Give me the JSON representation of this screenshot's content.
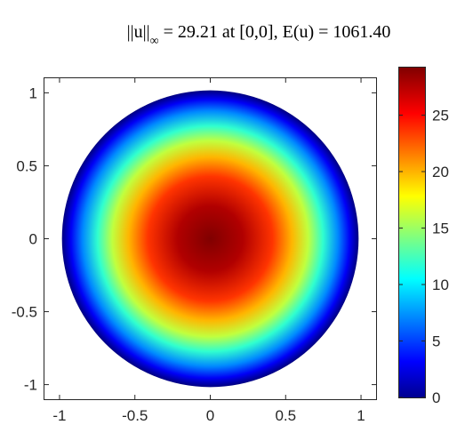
{
  "chart_data": {
    "type": "heatmap",
    "title": {
      "norm_prefix": "||u||",
      "norm_subscript": "∞",
      "rest": " = 29.21 at [0,0], E(u) = 1061.40"
    },
    "xlabel": "",
    "ylabel": "",
    "xlim": [
      -1.1,
      1.1
    ],
    "ylim": [
      -1.1,
      1.1
    ],
    "x_ticks": [
      -1,
      -0.5,
      0,
      0.5,
      1
    ],
    "x_tick_labels": [
      "-1",
      "-0.5",
      "0",
      "0.5",
      "1"
    ],
    "y_ticks": [
      -1,
      -0.5,
      0,
      0.5,
      1
    ],
    "y_tick_labels": [
      "-1",
      "-0.5",
      "0",
      "0.5",
      "1"
    ],
    "domain": {
      "shape": "disk",
      "center": [
        0,
        0
      ],
      "radius": 1
    },
    "field": {
      "max_value": 29.21,
      "max_location": [
        0,
        0
      ],
      "boundary_value": 0,
      "profile": "radial"
    },
    "colorbar": {
      "colormap": "jet",
      "range": [
        0,
        29.21
      ],
      "ticks": [
        0,
        5,
        10,
        15,
        20,
        25
      ],
      "tick_labels": [
        "0",
        "5",
        "10",
        "15",
        "20",
        "25"
      ]
    },
    "grid": false,
    "legend": "none"
  }
}
